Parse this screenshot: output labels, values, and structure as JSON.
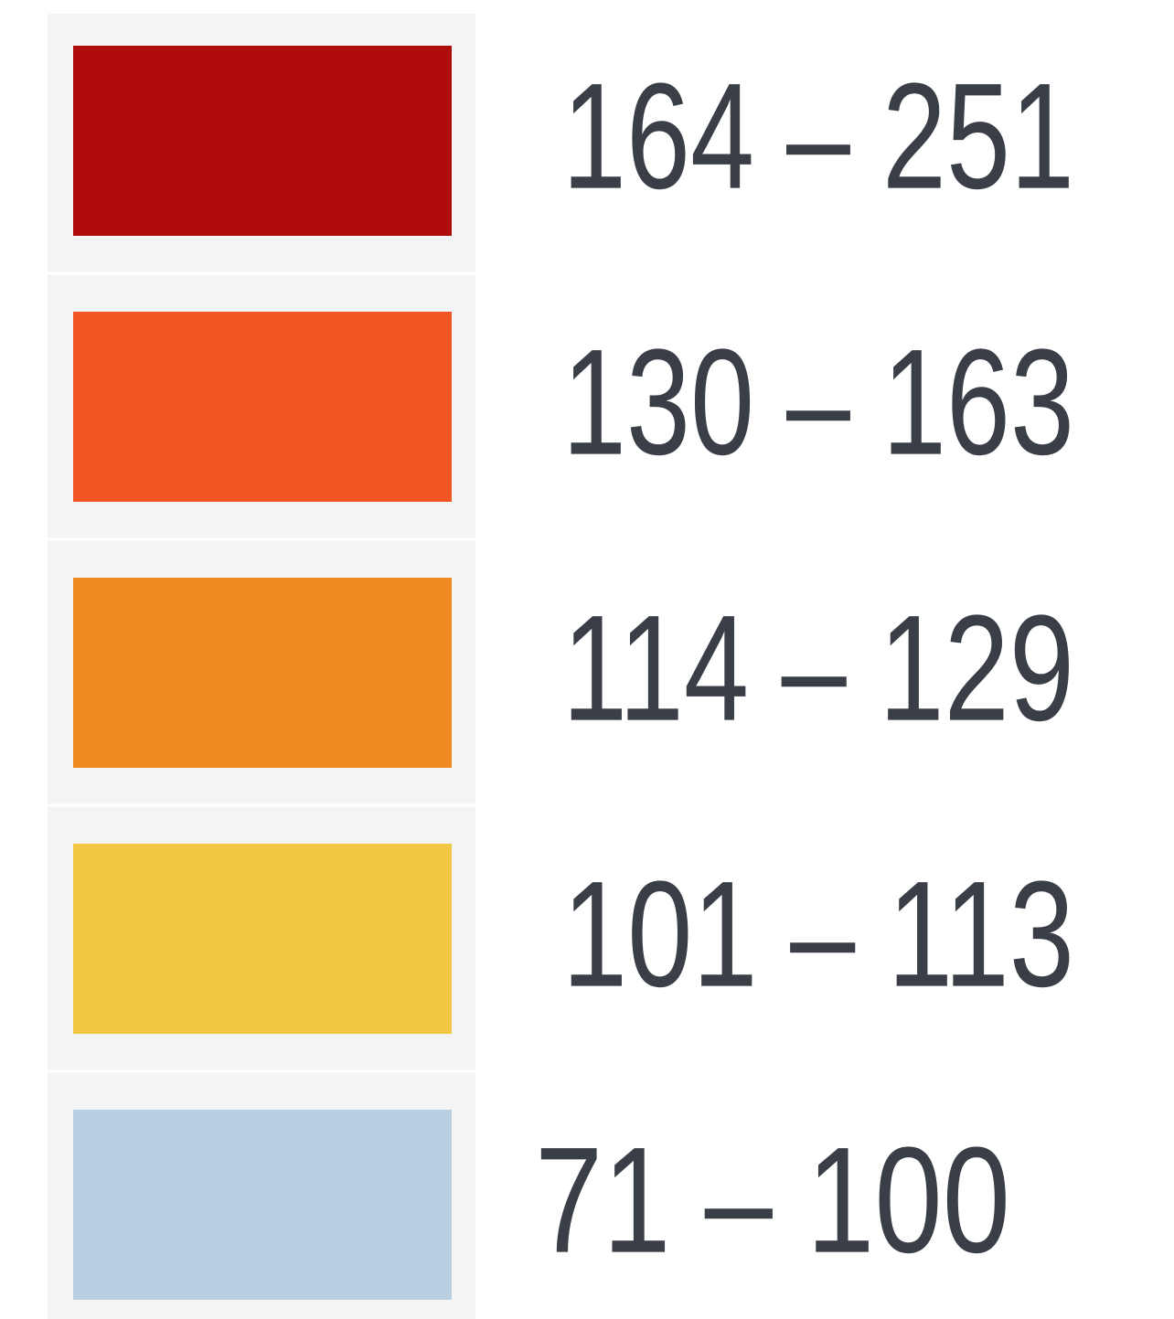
{
  "legend": {
    "items": [
      {
        "label": "164 – 251",
        "color": "#b00b0b"
      },
      {
        "label": "130 – 163",
        "color": "#f05522"
      },
      {
        "label": "114 – 129",
        "color": "#ef8a22"
      },
      {
        "label": "101 – 113",
        "color": "#f2c744"
      },
      {
        "label": "71 – 100",
        "color": "#b9d0e3"
      }
    ]
  }
}
